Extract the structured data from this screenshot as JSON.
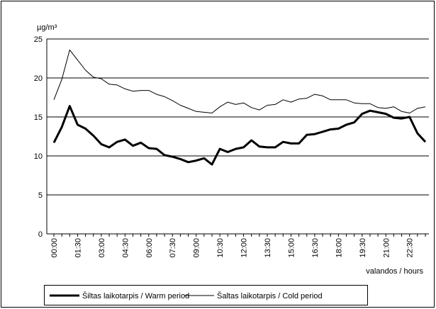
{
  "chart_data": {
    "type": "line",
    "y_label": "µg/m³",
    "x_label": "valandos / hours",
    "categories": [
      "00:00",
      null,
      null,
      "01:30",
      null,
      null,
      "03:00",
      null,
      null,
      "04:30",
      null,
      null,
      "06:00",
      null,
      null,
      "07:30",
      null,
      null,
      "09:00",
      null,
      null,
      "10:30",
      null,
      null,
      "12:00",
      null,
      null,
      "13:30",
      null,
      null,
      "15:00",
      null,
      null,
      "16:30",
      null,
      null,
      "18:00",
      null,
      null,
      "19:30",
      null,
      null,
      "21:00",
      null,
      null,
      "22:30",
      null,
      null
    ],
    "series": [
      {
        "name": "Šiltas laikotarpis / Warm period",
        "color": "#000000",
        "width": 3,
        "values": [
          11.7,
          13.7,
          16.4,
          14.0,
          13.5,
          12.6,
          11.5,
          11.1,
          11.8,
          12.1,
          11.3,
          11.7,
          11.0,
          10.9,
          10.1,
          9.9,
          9.6,
          9.2,
          9.4,
          9.7,
          8.9,
          10.9,
          10.5,
          10.9,
          11.1,
          12.0,
          11.2,
          11.1,
          11.1,
          11.8,
          11.6,
          11.6,
          12.7,
          12.8,
          13.1,
          13.4,
          13.5,
          14.0,
          14.3,
          15.4,
          15.8,
          15.6,
          15.4,
          14.9,
          14.8,
          15.0,
          12.9,
          11.8
        ]
      },
      {
        "name": "Šaltas laikotarpis / Cold period",
        "color": "#000000",
        "width": 1,
        "values": [
          17.2,
          19.8,
          23.6,
          22.3,
          21.0,
          20.1,
          19.9,
          19.2,
          19.1,
          18.6,
          18.3,
          18.4,
          18.4,
          17.9,
          17.6,
          17.1,
          16.5,
          16.1,
          15.7,
          15.6,
          15.5,
          16.3,
          16.9,
          16.6,
          16.8,
          16.2,
          15.9,
          16.5,
          16.6,
          17.2,
          16.9,
          17.3,
          17.4,
          17.9,
          17.7,
          17.2,
          17.2,
          17.2,
          16.8,
          16.7,
          16.7,
          16.2,
          16.1,
          16.3,
          15.7,
          15.5,
          16.1,
          16.3
        ]
      }
    ],
    "ylim": [
      0,
      25
    ],
    "yticks": [
      0,
      5,
      10,
      15,
      20,
      25
    ],
    "grid": true
  }
}
